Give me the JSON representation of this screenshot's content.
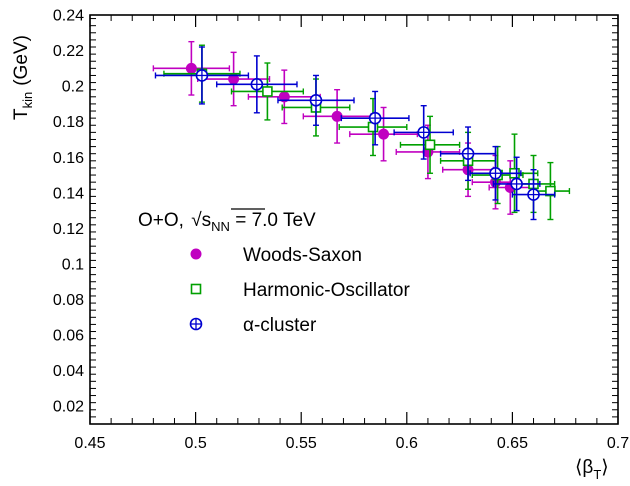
{
  "chart_data": {
    "type": "scatter",
    "title": "",
    "xlabel": "⟨β",
    "xlabel_sub": "T",
    "xlabel_close": "⟩",
    "ylabel": "T",
    "ylabel_sub": "kin",
    "ylabel_unit": "(GeV)",
    "xlim": [
      0.45,
      0.7
    ],
    "ylim": [
      0.01,
      0.24
    ],
    "xticks": [
      0.45,
      0.5,
      0.55,
      0.6,
      0.65,
      0.7
    ],
    "xtick_labels": [
      "0.45",
      "0.5",
      "0.55",
      "0.6",
      "0.65",
      "0.7"
    ],
    "yticks": [
      0.02,
      0.04,
      0.06,
      0.08,
      0.1,
      0.12,
      0.14,
      0.16,
      0.18,
      0.2,
      0.22,
      0.24
    ],
    "ytick_labels": [
      "0.02",
      "0.04",
      "0.06",
      "0.08",
      "0.1",
      "0.12",
      "0.14",
      "0.16",
      "0.18",
      "0.2",
      "0.22",
      "0.24"
    ],
    "grid": false,
    "legend": {
      "position": "center-left",
      "header_prefix": "O+O, ",
      "header_sqrt_label": "s",
      "header_sqrt_sub": "NN",
      "header_suffix": " = 7.0 TeV"
    },
    "series": [
      {
        "name": "Woods-Saxon",
        "marker": "filled-circle",
        "color": "#c000c0",
        "points": [
          {
            "x": 0.498,
            "y": 0.21,
            "xerr": 0.018,
            "yerr": 0.015
          },
          {
            "x": 0.518,
            "y": 0.204,
            "xerr": 0.017,
            "yerr": 0.015
          },
          {
            "x": 0.542,
            "y": 0.194,
            "xerr": 0.017,
            "yerr": 0.015
          },
          {
            "x": 0.567,
            "y": 0.183,
            "xerr": 0.016,
            "yerr": 0.015
          },
          {
            "x": 0.589,
            "y": 0.173,
            "xerr": 0.016,
            "yerr": 0.015
          },
          {
            "x": 0.61,
            "y": 0.163,
            "xerr": 0.015,
            "yerr": 0.015
          },
          {
            "x": 0.629,
            "y": 0.153,
            "xerr": 0.012,
            "yerr": 0.015
          },
          {
            "x": 0.642,
            "y": 0.146,
            "xerr": 0.011,
            "yerr": 0.015
          },
          {
            "x": 0.649,
            "y": 0.143,
            "xerr": 0.01,
            "yerr": 0.015
          }
        ]
      },
      {
        "name": "Harmonic-Oscillator",
        "marker": "open-square",
        "color": "#00a000",
        "points": [
          {
            "x": 0.503,
            "y": 0.207,
            "xerr": 0.018,
            "yerr": 0.016
          },
          {
            "x": 0.534,
            "y": 0.197,
            "xerr": 0.017,
            "yerr": 0.016
          },
          {
            "x": 0.557,
            "y": 0.188,
            "xerr": 0.016,
            "yerr": 0.016
          },
          {
            "x": 0.584,
            "y": 0.177,
            "xerr": 0.016,
            "yerr": 0.016
          },
          {
            "x": 0.611,
            "y": 0.167,
            "xerr": 0.014,
            "yerr": 0.016
          },
          {
            "x": 0.629,
            "y": 0.158,
            "xerr": 0.013,
            "yerr": 0.016
          },
          {
            "x": 0.643,
            "y": 0.15,
            "xerr": 0.012,
            "yerr": 0.016
          },
          {
            "x": 0.651,
            "y": 0.151,
            "xerr": 0.011,
            "yerr": 0.022
          },
          {
            "x": 0.66,
            "y": 0.145,
            "xerr": 0.01,
            "yerr": 0.016
          },
          {
            "x": 0.668,
            "y": 0.141,
            "xerr": 0.009,
            "yerr": 0.016
          }
        ]
      },
      {
        "name": "α-cluster",
        "marker": "open-circle-cross",
        "color": "#0000d0",
        "points": [
          {
            "x": 0.503,
            "y": 0.206,
            "xerr": 0.022,
            "yerr": 0.016
          },
          {
            "x": 0.529,
            "y": 0.201,
            "xerr": 0.019,
            "yerr": 0.016
          },
          {
            "x": 0.557,
            "y": 0.192,
            "xerr": 0.018,
            "yerr": 0.014
          },
          {
            "x": 0.585,
            "y": 0.182,
            "xerr": 0.016,
            "yerr": 0.015
          },
          {
            "x": 0.608,
            "y": 0.174,
            "xerr": 0.014,
            "yerr": 0.015
          },
          {
            "x": 0.629,
            "y": 0.162,
            "xerr": 0.013,
            "yerr": 0.015
          },
          {
            "x": 0.642,
            "y": 0.151,
            "xerr": 0.012,
            "yerr": 0.015
          },
          {
            "x": 0.652,
            "y": 0.145,
            "xerr": 0.011,
            "yerr": 0.015
          },
          {
            "x": 0.66,
            "y": 0.139,
            "xerr": 0.01,
            "yerr": 0.014
          }
        ]
      }
    ]
  }
}
